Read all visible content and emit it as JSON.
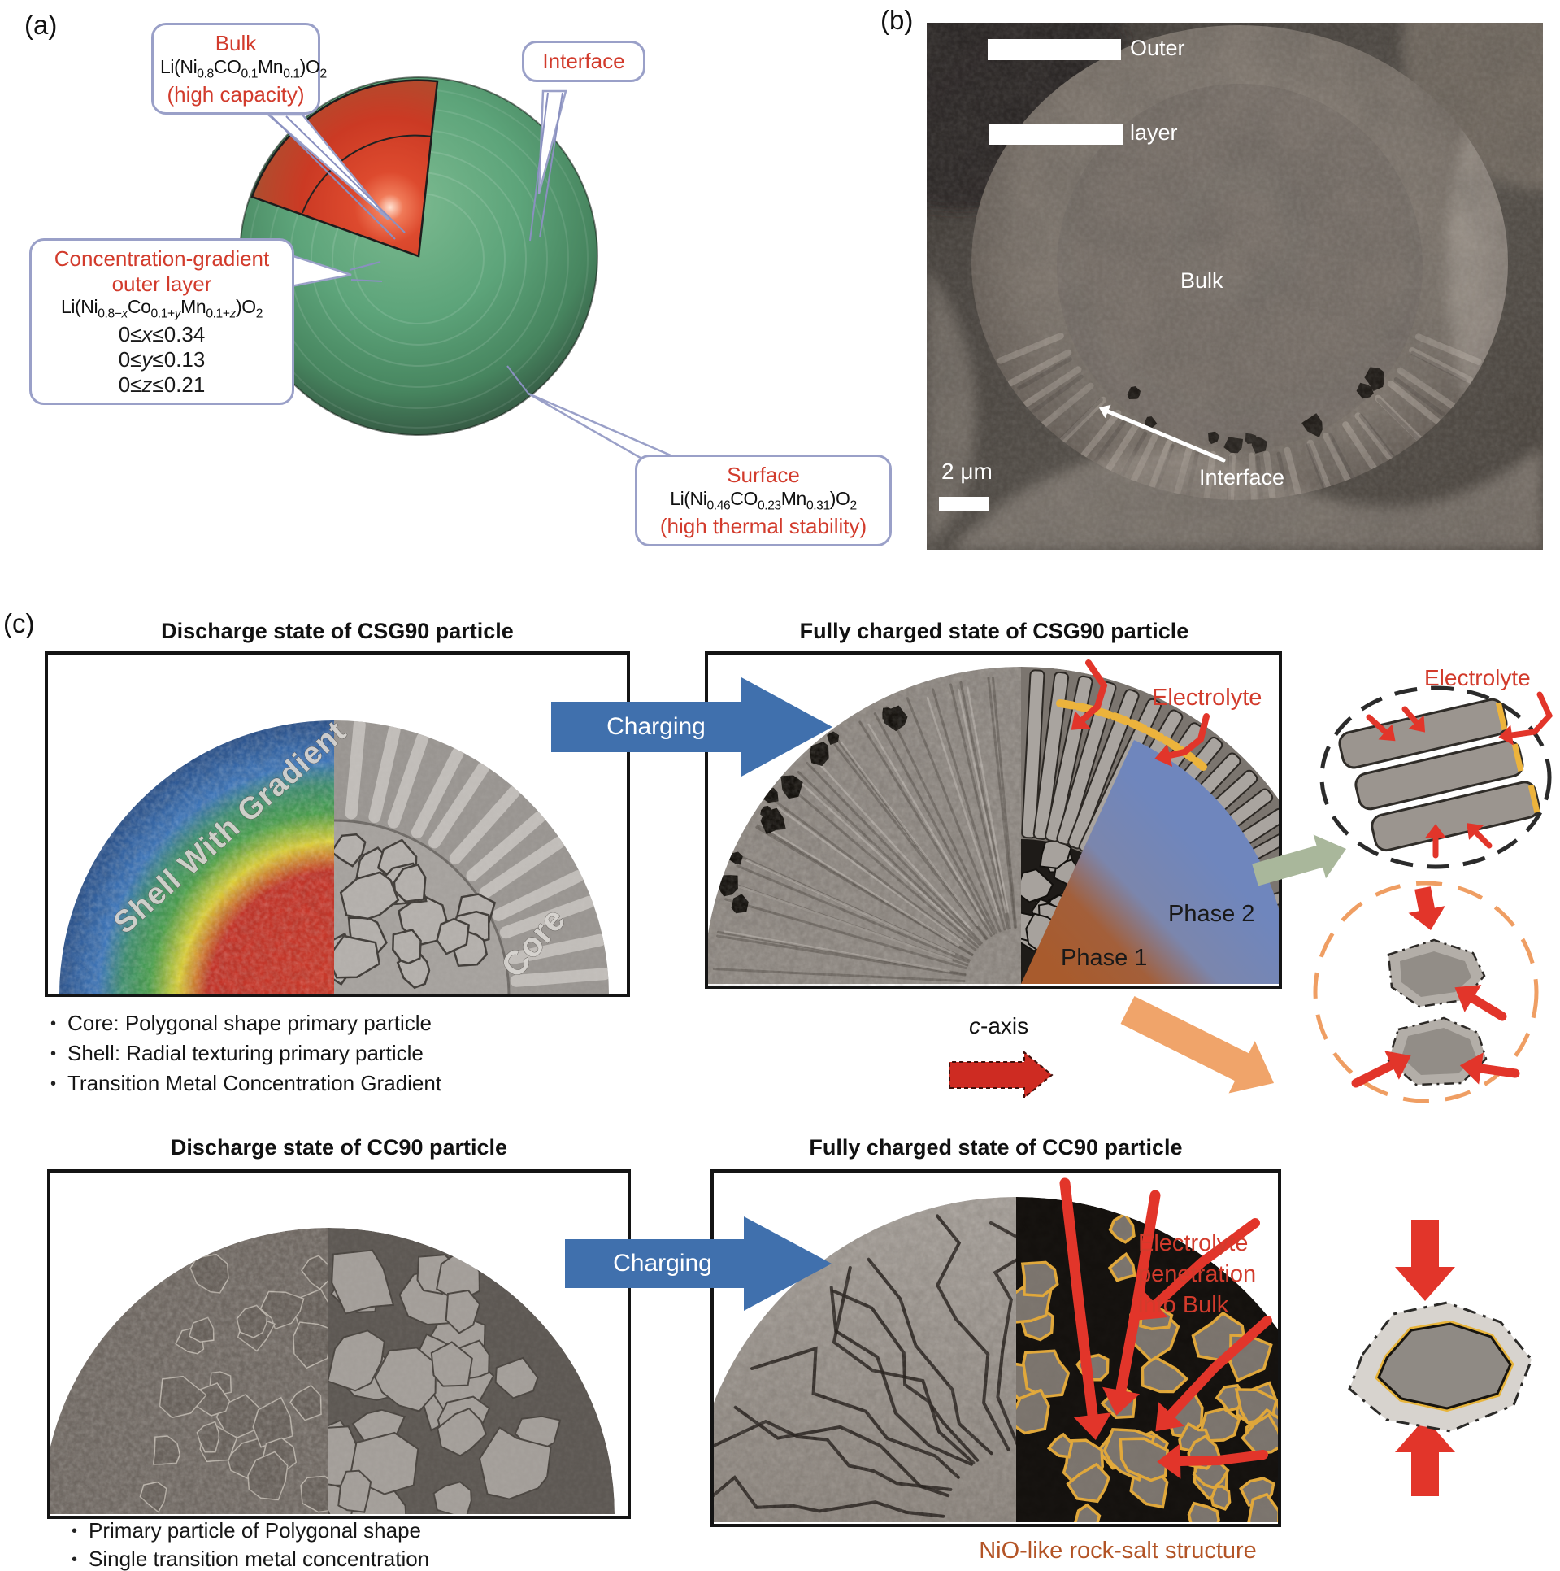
{
  "colors": {
    "accent_red": "#d23b2c",
    "callout_border": "#9aa0c8",
    "charging_blue": "#4070ad",
    "electrolyte_arrow_red": "#e2352a",
    "yellow_coating": "#ecb33c",
    "phase1_brown": "#a85b2d",
    "phase2_blue": "#6f86bd",
    "nio_brown": "#b35426",
    "green_arrow": "#a9b79b",
    "orange_arrow": "#f0a46a",
    "sphere_green": "#5da47a",
    "core_red": "#cb3a24"
  },
  "panel_a": {
    "label": "(a)",
    "bulk_callout": {
      "title": "Bulk",
      "formula": "Li(Ni_{0.8}CO_{0.1}Mn_{0.1})O_{2}",
      "note": "(high capacity)"
    },
    "interface_callout": {
      "title": "Interface"
    },
    "gradient_callout": {
      "title_line1": "Concentration-gradient",
      "title_line2": "outer layer",
      "formula": "Li(Ni_{0.8−*x*}Co_{0.1+*y*}Mn_{0.1+*z*})O_{2}",
      "range_x": "0≤*x*≤0.34",
      "range_y": "0≤*y*≤0.13",
      "range_z": "0≤*z*≤0.21"
    },
    "surface_callout": {
      "title": "Surface",
      "formula": "Li(Ni_{0.46}CO_{0.23}Mn_{0.31})O_{2}",
      "note": "(high thermal stability)"
    }
  },
  "panel_b": {
    "label": "(b)",
    "outer_label": "Outer",
    "layer_label": "layer",
    "bulk_label": "Bulk",
    "interface_label": "Interface",
    "scale_bar": "2 μm"
  },
  "panel_c": {
    "label": "(c)",
    "row_csg90": {
      "discharge_title": "Discharge state of CSG90 particle",
      "charged_title": "Fully charged state of CSG90 particle",
      "charging_label": "Charging",
      "shell_label": "Shell With Gradient",
      "core_label": "Core",
      "electrolyte_box_label": "Electrolyte",
      "phase1_label": "Phase 1",
      "phase2_label": "Phase 2",
      "c_axis_label": "*c*-axis",
      "electrolyte_detail_label": "Electrolyte",
      "bullets": [
        "Core: Polygonal shape primary particle",
        "Shell: Radial texturing primary particle",
        "Transition Metal Concentration Gradient"
      ]
    },
    "row_cc90": {
      "discharge_title": "Discharge state of CC90 particle",
      "charged_title": "Fully charged state of CC90 particle",
      "charging_label": "Charging",
      "electrolyte_note_line1": "Electrolyte",
      "electrolyte_note_line2": "penetration",
      "electrolyte_note_line3": "into Bulk",
      "nio_label": "NiO-like rock-salt structure",
      "bullets": [
        "Primary particle of Polygonal shape",
        "Single transition metal concentration"
      ]
    }
  }
}
